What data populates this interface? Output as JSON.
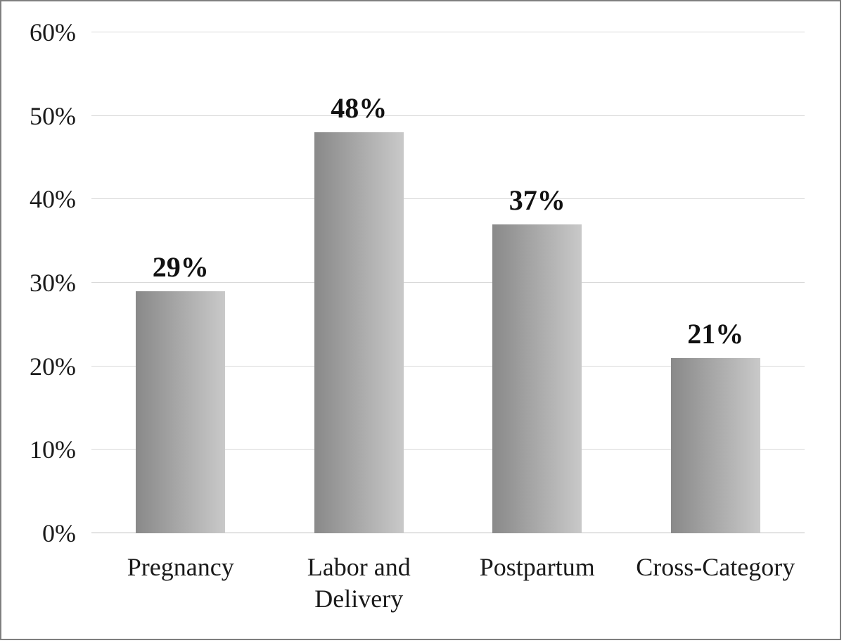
{
  "figure": {
    "background": "#ffffff",
    "border_color": "#7f7f7f"
  },
  "chart_data": {
    "type": "bar",
    "title": "",
    "xlabel": "",
    "ylabel": "",
    "categories": [
      "Pregnancy",
      "Labor and Delivery",
      "Postpartum",
      "Cross-Category"
    ],
    "values": [
      29,
      48,
      37,
      21
    ],
    "data_labels": [
      "29%",
      "48%",
      "37%",
      "21%"
    ],
    "yticks": [
      0,
      10,
      20,
      30,
      40,
      50,
      60
    ],
    "ytick_labels": [
      "0%",
      "10%",
      "20%",
      "30%",
      "40%",
      "50%",
      "60%"
    ],
    "ylim": [
      0,
      60
    ],
    "grid": true,
    "legend": "none",
    "bar_gradient": [
      "#898989",
      "#c9c9c9"
    ]
  }
}
